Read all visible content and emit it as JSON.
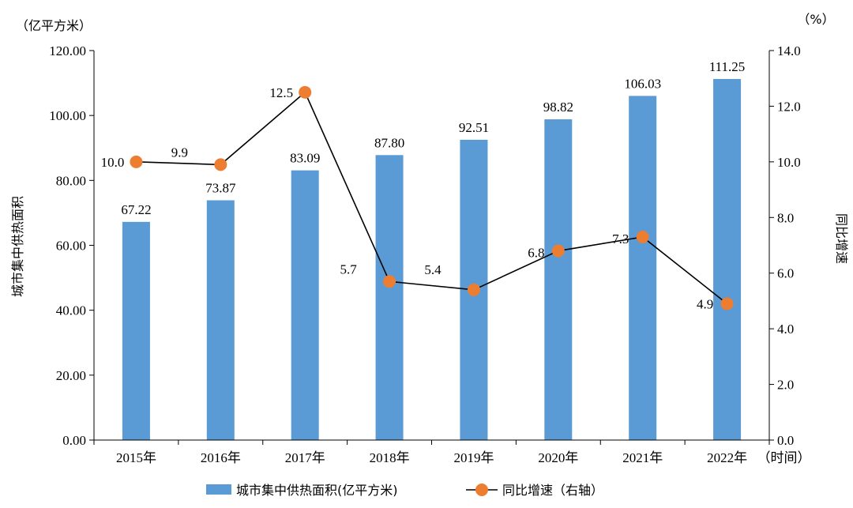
{
  "chart_data": {
    "type": "bar",
    "categories": [
      "2015年",
      "2016年",
      "2017年",
      "2018年",
      "2019年",
      "2020年",
      "2021年",
      "2022年"
    ],
    "x_axis_suffix": "（时间）",
    "series": [
      {
        "name": "城市集中供热面积(亿平方米)",
        "type": "bar",
        "axis": "left",
        "color": "#5b9bd5",
        "values": [
          67.22,
          73.87,
          83.09,
          87.8,
          92.51,
          98.82,
          106.03,
          111.25
        ],
        "labels": [
          "67.22",
          "73.87",
          "83.09",
          "87.80",
          "92.51",
          "98.82",
          "106.03",
          "111.25"
        ]
      },
      {
        "name": "同比增速（右轴）",
        "type": "line",
        "axis": "right",
        "line_color": "#000000",
        "marker_color": "#ed7d31",
        "values": [
          10.0,
          9.9,
          12.5,
          5.7,
          5.4,
          6.8,
          7.3,
          4.9
        ],
        "labels": [
          "10.0",
          "9.9",
          "12.5",
          "5.7",
          "5.4",
          "6.8",
          "7.3",
          "4.9"
        ]
      }
    ],
    "left_axis": {
      "unit": "（亿平方米）",
      "title": "城市集中供热面积",
      "ylim": [
        0,
        120
      ],
      "ticks": [
        "0.00",
        "20.00",
        "40.00",
        "60.00",
        "80.00",
        "100.00",
        "120.00"
      ]
    },
    "right_axis": {
      "unit": "（%）",
      "title": "同比增速",
      "ylim": [
        0,
        14
      ],
      "ticks": [
        "0.0",
        "2.0",
        "4.0",
        "6.0",
        "8.0",
        "10.0",
        "12.0",
        "14.0"
      ]
    },
    "grid": false,
    "legend_position": "bottom"
  }
}
